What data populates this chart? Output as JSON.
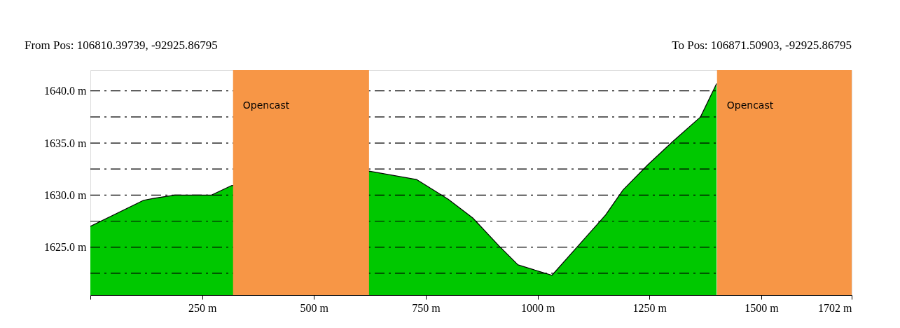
{
  "chart_data": {
    "type": "area",
    "annotations": [
      "From Pos: 106810.39739, -92925.86795",
      "To Pos: 106871.50903, -92925.86795"
    ],
    "x": [
      0,
      119,
      143,
      189,
      271,
      315,
      623,
      729,
      800,
      855,
      914,
      956,
      1032,
      1090,
      1152,
      1191,
      1246,
      1301,
      1364,
      1400
    ],
    "series": [
      {
        "color": "#00c800",
        "values": [
          1627.0,
          1629.5,
          1629.7,
          1630.0,
          1630.0,
          1630.9,
          1632.3,
          1631.5,
          1629.6,
          1627.8,
          1625.1,
          1623.3,
          1622.3,
          1625.1,
          1628.1,
          1630.5,
          1632.9,
          1635.1,
          1637.5,
          1640.7
        ]
      }
    ],
    "xlim": [
      0,
      1702
    ],
    "xticks": [
      {
        "value": 0,
        "label": null
      },
      {
        "value": 250,
        "label": "250 m"
      },
      {
        "value": 500,
        "label": "500 m"
      },
      {
        "value": 750,
        "label": "750 m"
      },
      {
        "value": 1000,
        "label": "1000 m"
      },
      {
        "value": 1250,
        "label": "1250 m"
      },
      {
        "value": 1500,
        "label": "1500 m"
      },
      {
        "value": 1702,
        "label": "1702 m"
      }
    ],
    "ylim": [
      1620.4,
      1642
    ],
    "yticks": [
      {
        "value": 1622.5,
        "label": null
      },
      {
        "value": 1625,
        "label": "1625.0 m"
      },
      {
        "value": 1627.5,
        "label": null
      },
      {
        "value": 1630,
        "label": "1630.0 m"
      },
      {
        "value": 1632.5,
        "label": null
      },
      {
        "value": 1635,
        "label": "1635.0 m"
      },
      {
        "value": 1637.5,
        "label": null
      },
      {
        "value": 1640,
        "label": "1640.0 m"
      }
    ],
    "grid": "y",
    "bands": [
      {
        "axis": "x",
        "from": 319,
        "to": 623,
        "label": "Opencast",
        "color": "#f79646"
      },
      {
        "axis": "x",
        "from": 1401,
        "to": 1702,
        "label": "Opencast",
        "color": "#f79646"
      }
    ]
  }
}
